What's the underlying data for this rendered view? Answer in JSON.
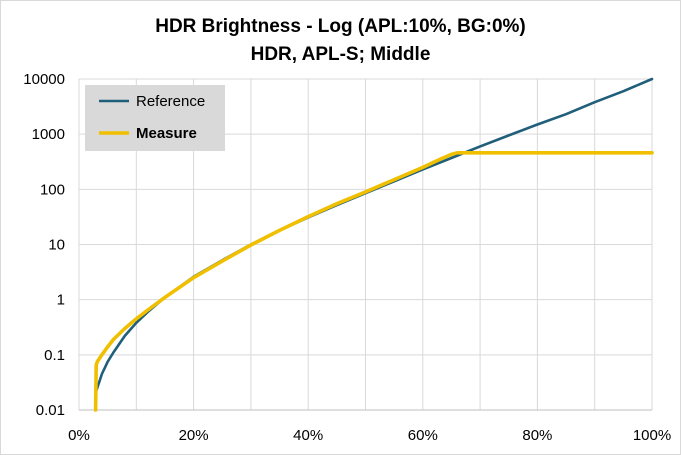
{
  "chart_data": {
    "type": "line",
    "title": "HDR Brightness - Log (APL:10%,  BG:0%)",
    "subtitle": "HDR, APL-S; Middle",
    "xlabel": "",
    "ylabel": "",
    "x_scale": "linear",
    "y_scale": "log",
    "xlim": [
      0,
      100
    ],
    "ylim": [
      0.01,
      10000
    ],
    "x_ticks": [
      "0%",
      "20%",
      "40%",
      "60%",
      "80%",
      "100%"
    ],
    "y_ticks": [
      "0.01",
      "0.1",
      "1",
      "10",
      "100",
      "1000",
      "10000"
    ],
    "grid": true,
    "legend_position": "top-left",
    "series": [
      {
        "name": "Reference",
        "color": "#1f5f7a",
        "x": [
          2.9,
          3,
          4,
          5,
          6,
          8,
          10,
          12,
          15,
          20,
          25,
          30,
          35,
          40,
          45,
          50,
          55,
          60,
          65,
          70,
          75,
          80,
          85,
          90,
          95,
          100
        ],
        "y": [
          0.01,
          0.022,
          0.045,
          0.075,
          0.11,
          0.22,
          0.38,
          0.6,
          1.1,
          2.6,
          5.2,
          10,
          18,
          31,
          52,
          85,
          140,
          230,
          370,
          600,
          950,
          1500,
          2300,
          3800,
          6000,
          10000
        ]
      },
      {
        "name": "Measure",
        "color": "#f0c000",
        "x": [
          2.9,
          3.0,
          3.2,
          4,
          5,
          6,
          8,
          10,
          12,
          15,
          20,
          25,
          30,
          35,
          40,
          45,
          50,
          55,
          60,
          63,
          65,
          66,
          70,
          80,
          90,
          100
        ],
        "y": [
          0.01,
          0.065,
          0.075,
          0.1,
          0.14,
          0.19,
          0.3,
          0.45,
          0.65,
          1.1,
          2.5,
          5.0,
          9.8,
          18,
          32,
          55,
          90,
          150,
          250,
          350,
          430,
          460,
          460,
          460,
          460,
          460
        ]
      }
    ]
  }
}
